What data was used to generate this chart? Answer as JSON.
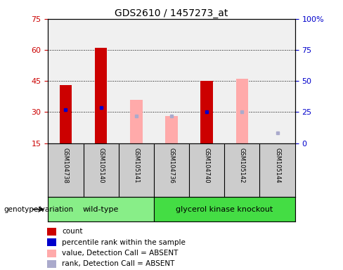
{
  "title": "GDS2610 / 1457273_at",
  "samples": [
    "GSM104738",
    "GSM105140",
    "GSM105141",
    "GSM104736",
    "GSM104740",
    "GSM105142",
    "GSM105144"
  ],
  "count_values": [
    43,
    61,
    null,
    null,
    45,
    null,
    null
  ],
  "count_absent_values": [
    null,
    null,
    36,
    28,
    null,
    46,
    15
  ],
  "percentile_rank": [
    31,
    32,
    null,
    null,
    30,
    null,
    null
  ],
  "percentile_rank_absent": [
    null,
    null,
    28,
    28,
    null,
    30,
    20
  ],
  "ylim": [
    15,
    75
  ],
  "y2lim": [
    0,
    100
  ],
  "yticks": [
    15,
    30,
    45,
    60,
    75
  ],
  "y2ticks": [
    0,
    25,
    50,
    75,
    100
  ],
  "ylabel_color": "#cc0000",
  "y2label_color": "#0000cc",
  "bar_width": 0.35,
  "count_color": "#cc0000",
  "count_absent_color": "#ffaaaa",
  "rank_color": "#0000cc",
  "rank_absent_color": "#aaaacc",
  "wt_color": "#88ee88",
  "ko_color": "#44dd44",
  "label_bg_color": "#cccccc",
  "plot_bg_color": "#f0f0f0",
  "background_color": "#ffffff",
  "legend_items": [
    {
      "label": "count",
      "color": "#cc0000"
    },
    {
      "label": "percentile rank within the sample",
      "color": "#0000cc"
    },
    {
      "label": "value, Detection Call = ABSENT",
      "color": "#ffaaaa"
    },
    {
      "label": "rank, Detection Call = ABSENT",
      "color": "#aaaacc"
    }
  ],
  "genotype_label": "genotype/variation",
  "wt_span": [
    0,
    2
  ],
  "ko_span": [
    3,
    6
  ],
  "title_fontsize": 10,
  "tick_fontsize": 8,
  "label_fontsize": 7,
  "legend_fontsize": 7.5
}
